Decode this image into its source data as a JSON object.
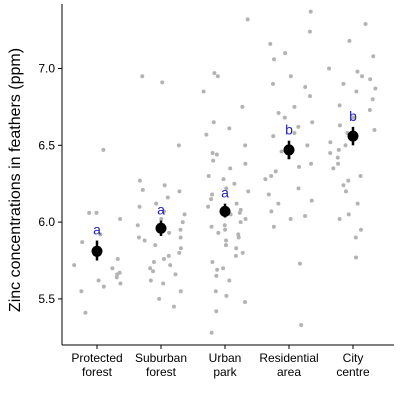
{
  "chart_data": {
    "type": "scatter",
    "title": "",
    "xlabel": "",
    "ylabel": "Zinc concentrations in feathers (ppm)",
    "ylim": [
      5.2,
      7.42
    ],
    "yticks": [
      5.5,
      6.0,
      6.5,
      7.0
    ],
    "ytick_labels": [
      "5.5",
      "6.0",
      "6.5",
      "7.0"
    ],
    "grid": false,
    "legend": "none",
    "colors": {
      "points": "#b3b3b3",
      "mean": "#000000",
      "letters": "#1f1fcc",
      "axis": "#000000"
    },
    "categories": [
      {
        "label_lines": [
          "Protected",
          "forest"
        ],
        "mean": 5.81,
        "ci": [
          5.75,
          5.88
        ],
        "letter": "a"
      },
      {
        "label_lines": [
          "Suburban",
          "forest"
        ],
        "mean": 5.96,
        "ci": [
          5.91,
          6.01
        ],
        "letter": "a"
      },
      {
        "label_lines": [
          "Urban",
          "park"
        ],
        "mean": 6.07,
        "ci": [
          6.03,
          6.12
        ],
        "letter": "a"
      },
      {
        "label_lines": [
          "Residential",
          "area"
        ],
        "mean": 6.47,
        "ci": [
          6.41,
          6.53
        ],
        "letter": "b"
      },
      {
        "label_lines": [
          "City",
          "centre"
        ],
        "mean": 6.56,
        "ci": [
          6.5,
          6.62
        ],
        "letter": "b"
      }
    ],
    "points": [
      [
        5.41,
        5.66,
        5.92,
        5.87,
        5.72,
        5.7,
        6.02,
        5.67,
        5.62,
        5.76,
        6.06,
        5.6,
        6.47,
        5.58,
        5.55,
        5.81,
        6.06,
        5.64
      ],
      [
        5.5,
        5.76,
        5.9,
        6.95,
        6.5,
        6.91,
        6.27,
        6.21,
        6.05,
        5.95,
        5.85,
        5.72,
        5.62,
        5.45,
        5.7,
        6.1,
        6.0,
        5.8,
        5.66,
        6.16,
        5.55,
        5.9,
        5.78,
        6.24,
        5.98,
        5.83,
        6.02,
        5.74,
        6.12,
        5.68,
        5.88,
        5.93,
        6.2,
        5.6,
        6.07
      ],
      [
        5.28,
        5.42,
        5.55,
        5.62,
        5.7,
        5.78,
        5.85,
        5.9,
        5.95,
        6.0,
        6.05,
        6.1,
        6.15,
        6.2,
        6.25,
        6.3,
        6.38,
        6.45,
        6.5,
        6.57,
        6.65,
        6.75,
        6.85,
        6.95,
        6.97,
        7.32,
        5.52,
        5.65,
        5.74,
        5.83,
        5.88,
        5.93,
        5.98,
        6.02,
        6.08,
        6.12,
        6.18,
        6.22,
        6.28,
        6.35,
        6.4,
        5.8,
        5.69,
        5.97,
        6.06,
        5.92,
        6.44,
        6.61,
        5.48
      ],
      [
        5.33,
        5.73,
        5.97,
        6.02,
        6.07,
        6.12,
        6.18,
        6.22,
        6.28,
        6.33,
        6.38,
        6.42,
        6.46,
        6.5,
        6.56,
        6.62,
        6.68,
        6.75,
        6.82,
        6.88,
        6.95,
        7.06,
        7.16,
        7.24,
        7.37,
        6.04,
        6.3,
        6.48,
        6.65,
        6.9,
        7.1,
        6.14,
        6.58,
        6.71,
        6.36
      ],
      [
        5.77,
        5.9,
        5.95,
        6.05,
        6.12,
        6.2,
        6.27,
        6.3,
        6.38,
        6.42,
        6.47,
        6.52,
        6.58,
        6.63,
        6.68,
        6.73,
        6.8,
        6.85,
        6.9,
        6.95,
        7.0,
        7.08,
        7.18,
        7.29,
        6.24,
        6.45,
        6.6,
        6.76,
        6.93,
        6.35,
        6.02,
        6.5,
        6.87,
        6.98
      ]
    ]
  }
}
